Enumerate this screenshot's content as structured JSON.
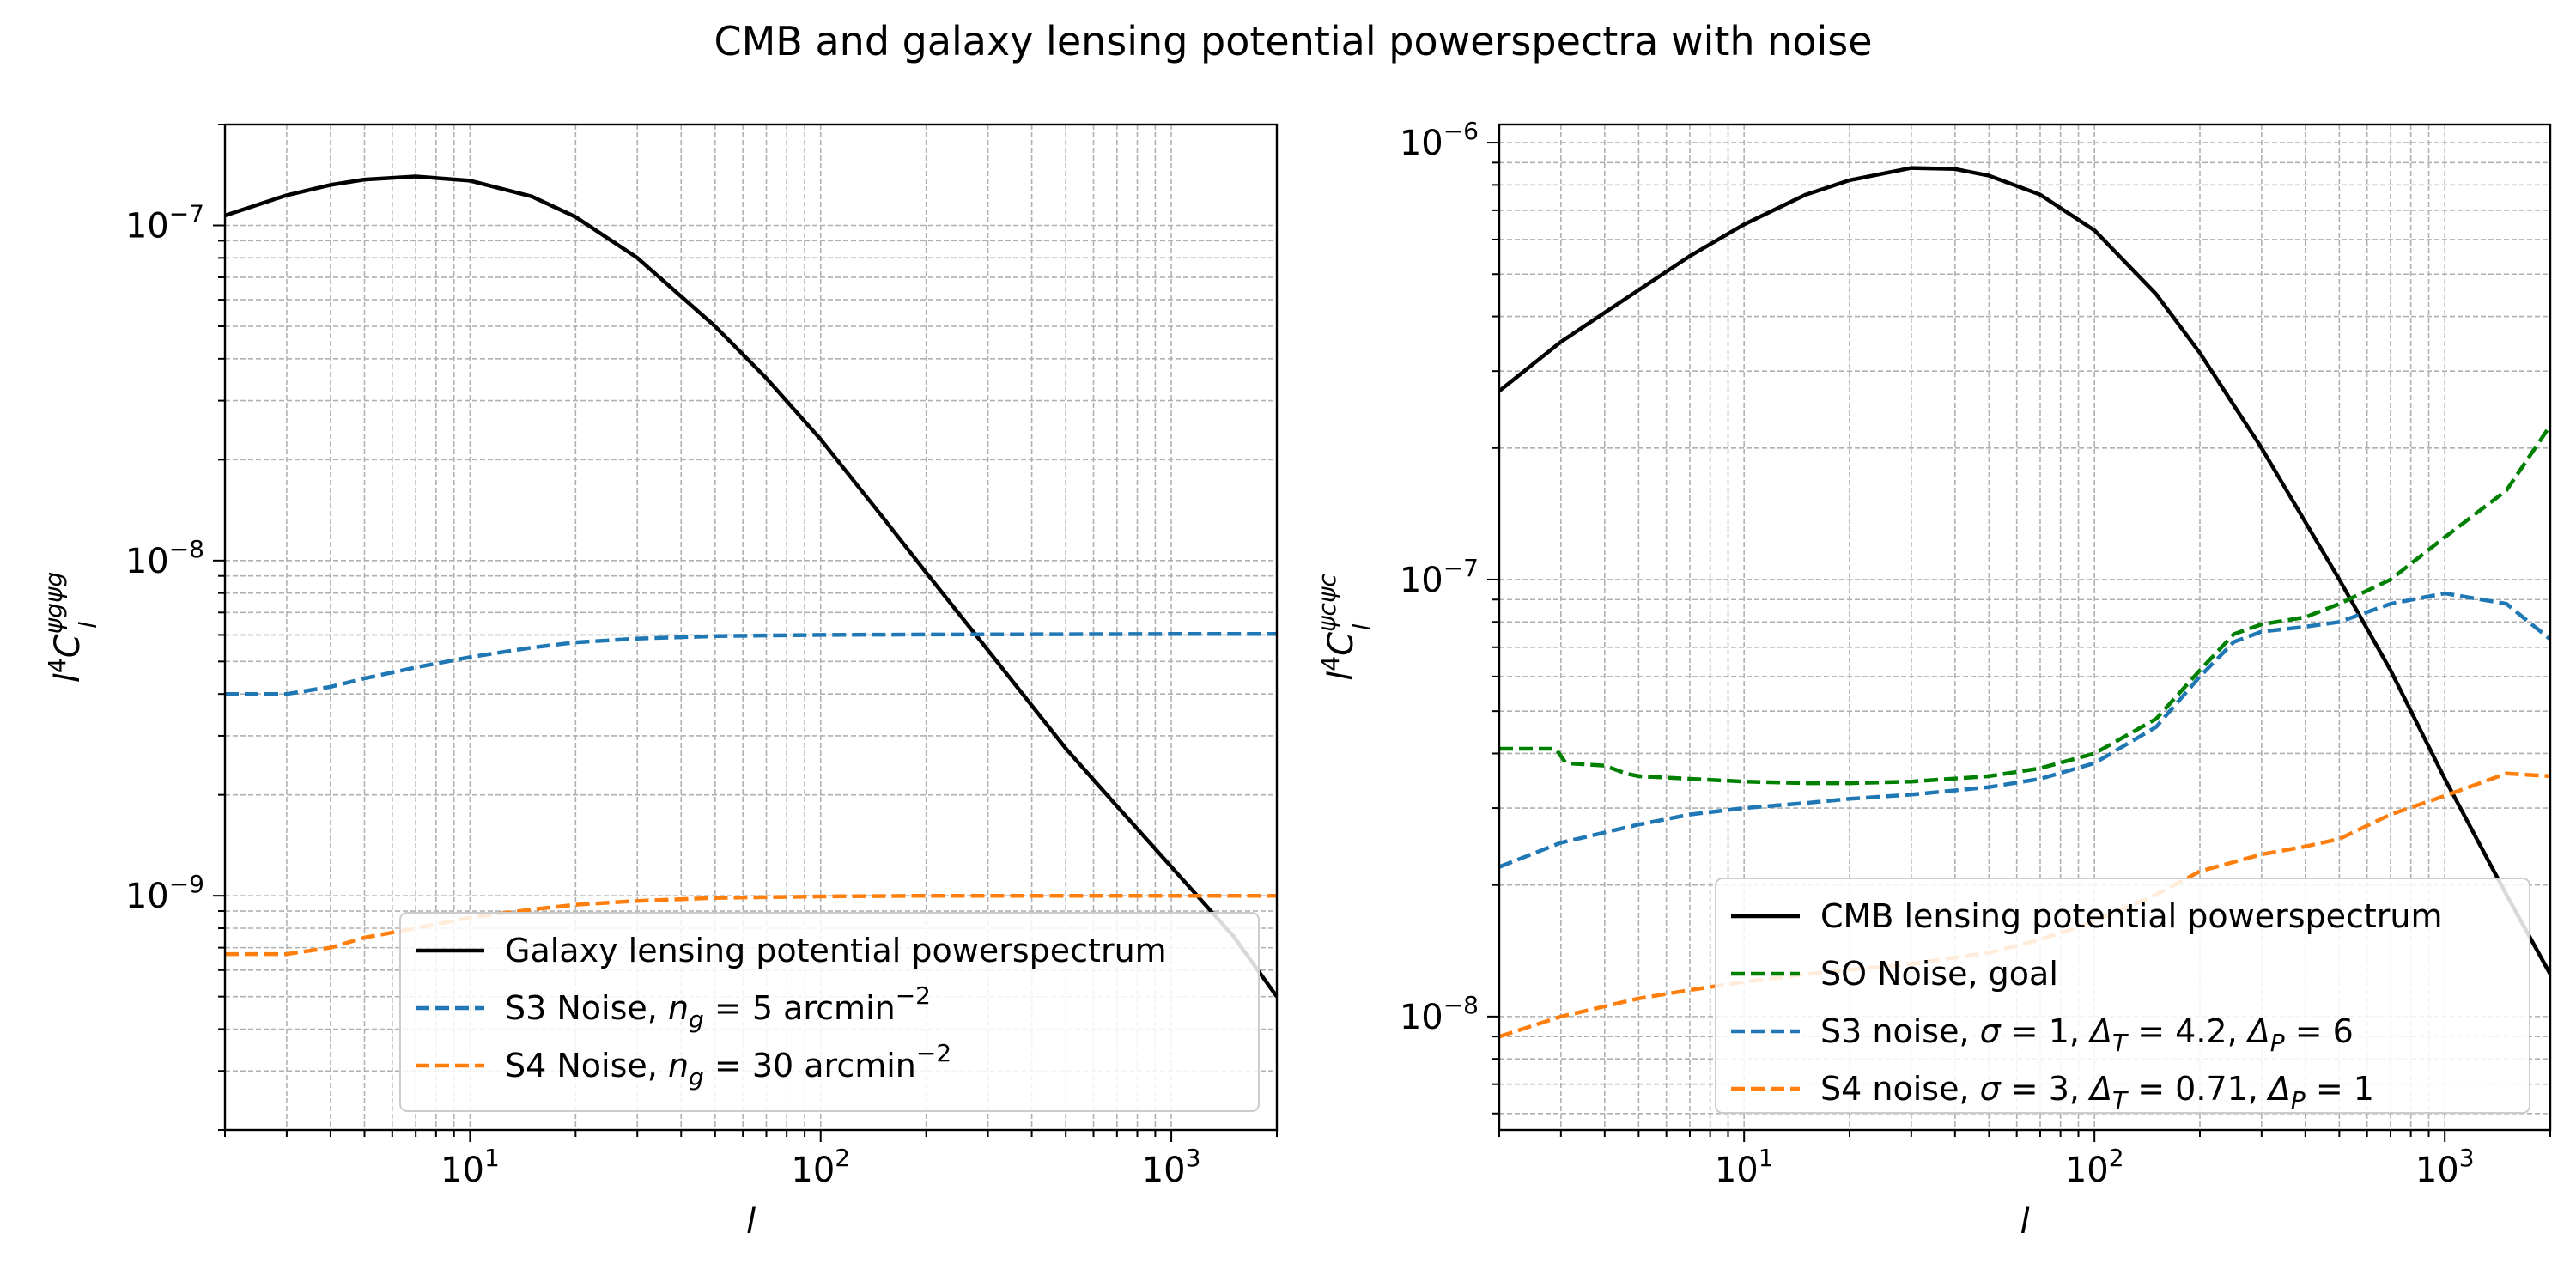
{
  "figure": {
    "title": "CMB and galaxy lensing potential powerspectra with noise"
  },
  "chart_data": [
    {
      "type": "line",
      "xscale": "log",
      "yscale": "log",
      "xlabel": "l",
      "ylabel": "l^4 C_l^{ψ_g ψ_g}",
      "xlim": [
        2,
        2000
      ],
      "ylim": [
        2e-10,
        2e-07
      ],
      "grid": true,
      "legend_position": "lower-right",
      "xticks": [
        {
          "base": "10",
          "exp": "1"
        },
        {
          "base": "10",
          "exp": "2"
        },
        {
          "base": "10",
          "exp": "3"
        }
      ],
      "yticks": [
        {
          "base": "10",
          "exp": "−9",
          "value": 1e-09
        },
        {
          "base": "10",
          "exp": "−8",
          "value": 1e-08
        },
        {
          "base": "10",
          "exp": "−7",
          "value": 1e-07
        }
      ],
      "series": [
        {
          "name": "Galaxy lensing potential powerspectrum",
          "color": "#000000",
          "dash": "solid",
          "x": [
            2,
            3,
            4,
            5,
            7,
            10,
            15,
            20,
            30,
            50,
            70,
            100,
            150,
            200,
            300,
            500,
            700,
            1000,
            1500,
            2000
          ],
          "y": [
            1.07e-07,
            1.23e-07,
            1.32e-07,
            1.37e-07,
            1.4e-07,
            1.36e-07,
            1.22e-07,
            1.06e-07,
            8e-08,
            5e-08,
            3.5e-08,
            2.3e-08,
            1.35e-08,
            9.2e-09,
            5.4e-09,
            2.75e-09,
            1.85e-09,
            1.22e-09,
            7.6e-10,
            5e-10
          ]
        },
        {
          "name": "S3 Noise, n_g = 5 arcmin^−2",
          "color": "#1f77b4",
          "dash": "dashed",
          "x": [
            2,
            3,
            4,
            5,
            7,
            10,
            15,
            20,
            30,
            50,
            100,
            200,
            500,
            1000,
            2000
          ],
          "y": [
            4e-09,
            4e-09,
            4.2e-09,
            4.45e-09,
            4.8e-09,
            5.15e-09,
            5.5e-09,
            5.7e-09,
            5.85e-09,
            5.95e-09,
            6e-09,
            6.02e-09,
            6.03e-09,
            6.04e-09,
            6.04e-09
          ]
        },
        {
          "name": "S4 Noise, n_g = 30 arcmin^−2",
          "color": "#ff7f0e",
          "dash": "dashed",
          "x": [
            2,
            3,
            4,
            5,
            7,
            10,
            15,
            20,
            30,
            50,
            100,
            200,
            500,
            1000,
            2000
          ],
          "y": [
            6.7e-10,
            6.7e-10,
            7e-10,
            7.5e-10,
            8e-10,
            8.6e-10,
            9.1e-10,
            9.4e-10,
            9.65e-10,
            9.85e-10,
            9.95e-10,
            1e-09,
            1e-09,
            1e-09,
            1e-09
          ]
        }
      ],
      "legend_entries": [
        {
          "pre": "Galaxy lensing potential powerspectrum"
        },
        {
          "pre": "S3 Noise, ",
          "var": "n",
          "sub": "g",
          "post": " = 5 arcmin",
          "sup": "−2"
        },
        {
          "pre": "S4 Noise, ",
          "var": "n",
          "sub": "g",
          "post": " = 30 arcmin",
          "sup": "−2"
        }
      ]
    },
    {
      "type": "line",
      "xscale": "log",
      "yscale": "log",
      "xlabel": "l",
      "ylabel": "l^4 C_l^{ψ_c ψ_c}",
      "xlim": [
        2,
        2000
      ],
      "ylim": [
        5.5e-09,
        1.1e-06
      ],
      "grid": true,
      "legend_position": "lower-right",
      "xticks": [
        {
          "base": "10",
          "exp": "1"
        },
        {
          "base": "10",
          "exp": "2"
        },
        {
          "base": "10",
          "exp": "3"
        }
      ],
      "yticks": [
        {
          "base": "10",
          "exp": "−8",
          "value": 1e-08
        },
        {
          "base": "10",
          "exp": "−7",
          "value": 1e-07
        },
        {
          "base": "10",
          "exp": "−6",
          "value": 1e-06
        }
      ],
      "series": [
        {
          "name": "CMB lensing potential powerspectrum",
          "color": "#000000",
          "dash": "solid",
          "x": [
            2,
            3,
            5,
            7,
            10,
            15,
            20,
            30,
            40,
            50,
            70,
            100,
            150,
            200,
            300,
            500,
            700,
            1000,
            1500,
            2000
          ],
          "y": [
            2.7e-07,
            3.5e-07,
            4.6e-07,
            5.5e-07,
            6.5e-07,
            7.6e-07,
            8.2e-07,
            8.75e-07,
            8.7e-07,
            8.4e-07,
            7.6e-07,
            6.3e-07,
            4.5e-07,
            3.3e-07,
            2e-07,
            1e-07,
            6.2e-08,
            3.5e-08,
            1.9e-08,
            1.25e-08
          ]
        },
        {
          "name": "SO Noise, goal",
          "color": "#008000",
          "dash": "dashed",
          "x": [
            2,
            2.9,
            3.1,
            4,
            4.6,
            5,
            7,
            10,
            15,
            20,
            30,
            50,
            70,
            100,
            150,
            200,
            250,
            300,
            400,
            500,
            700,
            1000,
            1500,
            2000
          ],
          "y": [
            4.1e-08,
            4.1e-08,
            3.8e-08,
            3.75e-08,
            3.6e-08,
            3.55e-08,
            3.5e-08,
            3.45e-08,
            3.42e-08,
            3.42e-08,
            3.45e-08,
            3.55e-08,
            3.7e-08,
            4e-08,
            4.8e-08,
            6.2e-08,
            7.5e-08,
            7.9e-08,
            8.2e-08,
            8.8e-08,
            1e-07,
            1.25e-07,
            1.6e-07,
            2.25e-07
          ]
        },
        {
          "name": "S3 noise, σ = 1, Δ_T = 4.2, Δ_P = 6",
          "color": "#1f77b4",
          "dash": "dashed",
          "x": [
            2,
            3,
            5,
            7,
            10,
            15,
            20,
            30,
            50,
            70,
            100,
            150,
            200,
            250,
            300,
            400,
            500,
            700,
            1000,
            1500,
            2000
          ],
          "y": [
            2.2e-08,
            2.5e-08,
            2.75e-08,
            2.9e-08,
            3e-08,
            3.08e-08,
            3.15e-08,
            3.22e-08,
            3.35e-08,
            3.5e-08,
            3.8e-08,
            4.6e-08,
            6e-08,
            7.2e-08,
            7.6e-08,
            7.8e-08,
            8e-08,
            8.8e-08,
            9.3e-08,
            8.8e-08,
            7.3e-08
          ]
        },
        {
          "name": "S4 noise, σ = 3, Δ_T = 0.71, Δ_P = 1",
          "color": "#ff7f0e",
          "dash": "dashed",
          "x": [
            2,
            3,
            5,
            7,
            10,
            15,
            20,
            30,
            50,
            70,
            100,
            150,
            200,
            300,
            400,
            500,
            700,
            1000,
            1500,
            2000
          ],
          "y": [
            9e-09,
            1e-08,
            1.1e-08,
            1.15e-08,
            1.2e-08,
            1.25e-08,
            1.28e-08,
            1.32e-08,
            1.4e-08,
            1.5e-08,
            1.65e-08,
            1.9e-08,
            2.15e-08,
            2.35e-08,
            2.45e-08,
            2.55e-08,
            2.9e-08,
            3.2e-08,
            3.6e-08,
            3.55e-08
          ]
        }
      ],
      "legend_entries": [
        {
          "pre": "CMB lensing potential powerspectrum"
        },
        {
          "pre": "SO Noise, goal"
        },
        {
          "pre": "S3 noise, ",
          "var": "σ",
          "post": " = 1, ",
          "var2": "Δ",
          "sub2": "T",
          "post2": " = 4.2, ",
          "var3": "Δ",
          "sub3": "P",
          "post3": " = 6"
        },
        {
          "pre": "S4 noise, ",
          "var": "σ",
          "post": " = 3, ",
          "var2": "Δ",
          "sub2": "T",
          "post2": " = 0.71, ",
          "var3": "Δ",
          "sub3": "P",
          "post3": " = 1"
        }
      ]
    }
  ]
}
